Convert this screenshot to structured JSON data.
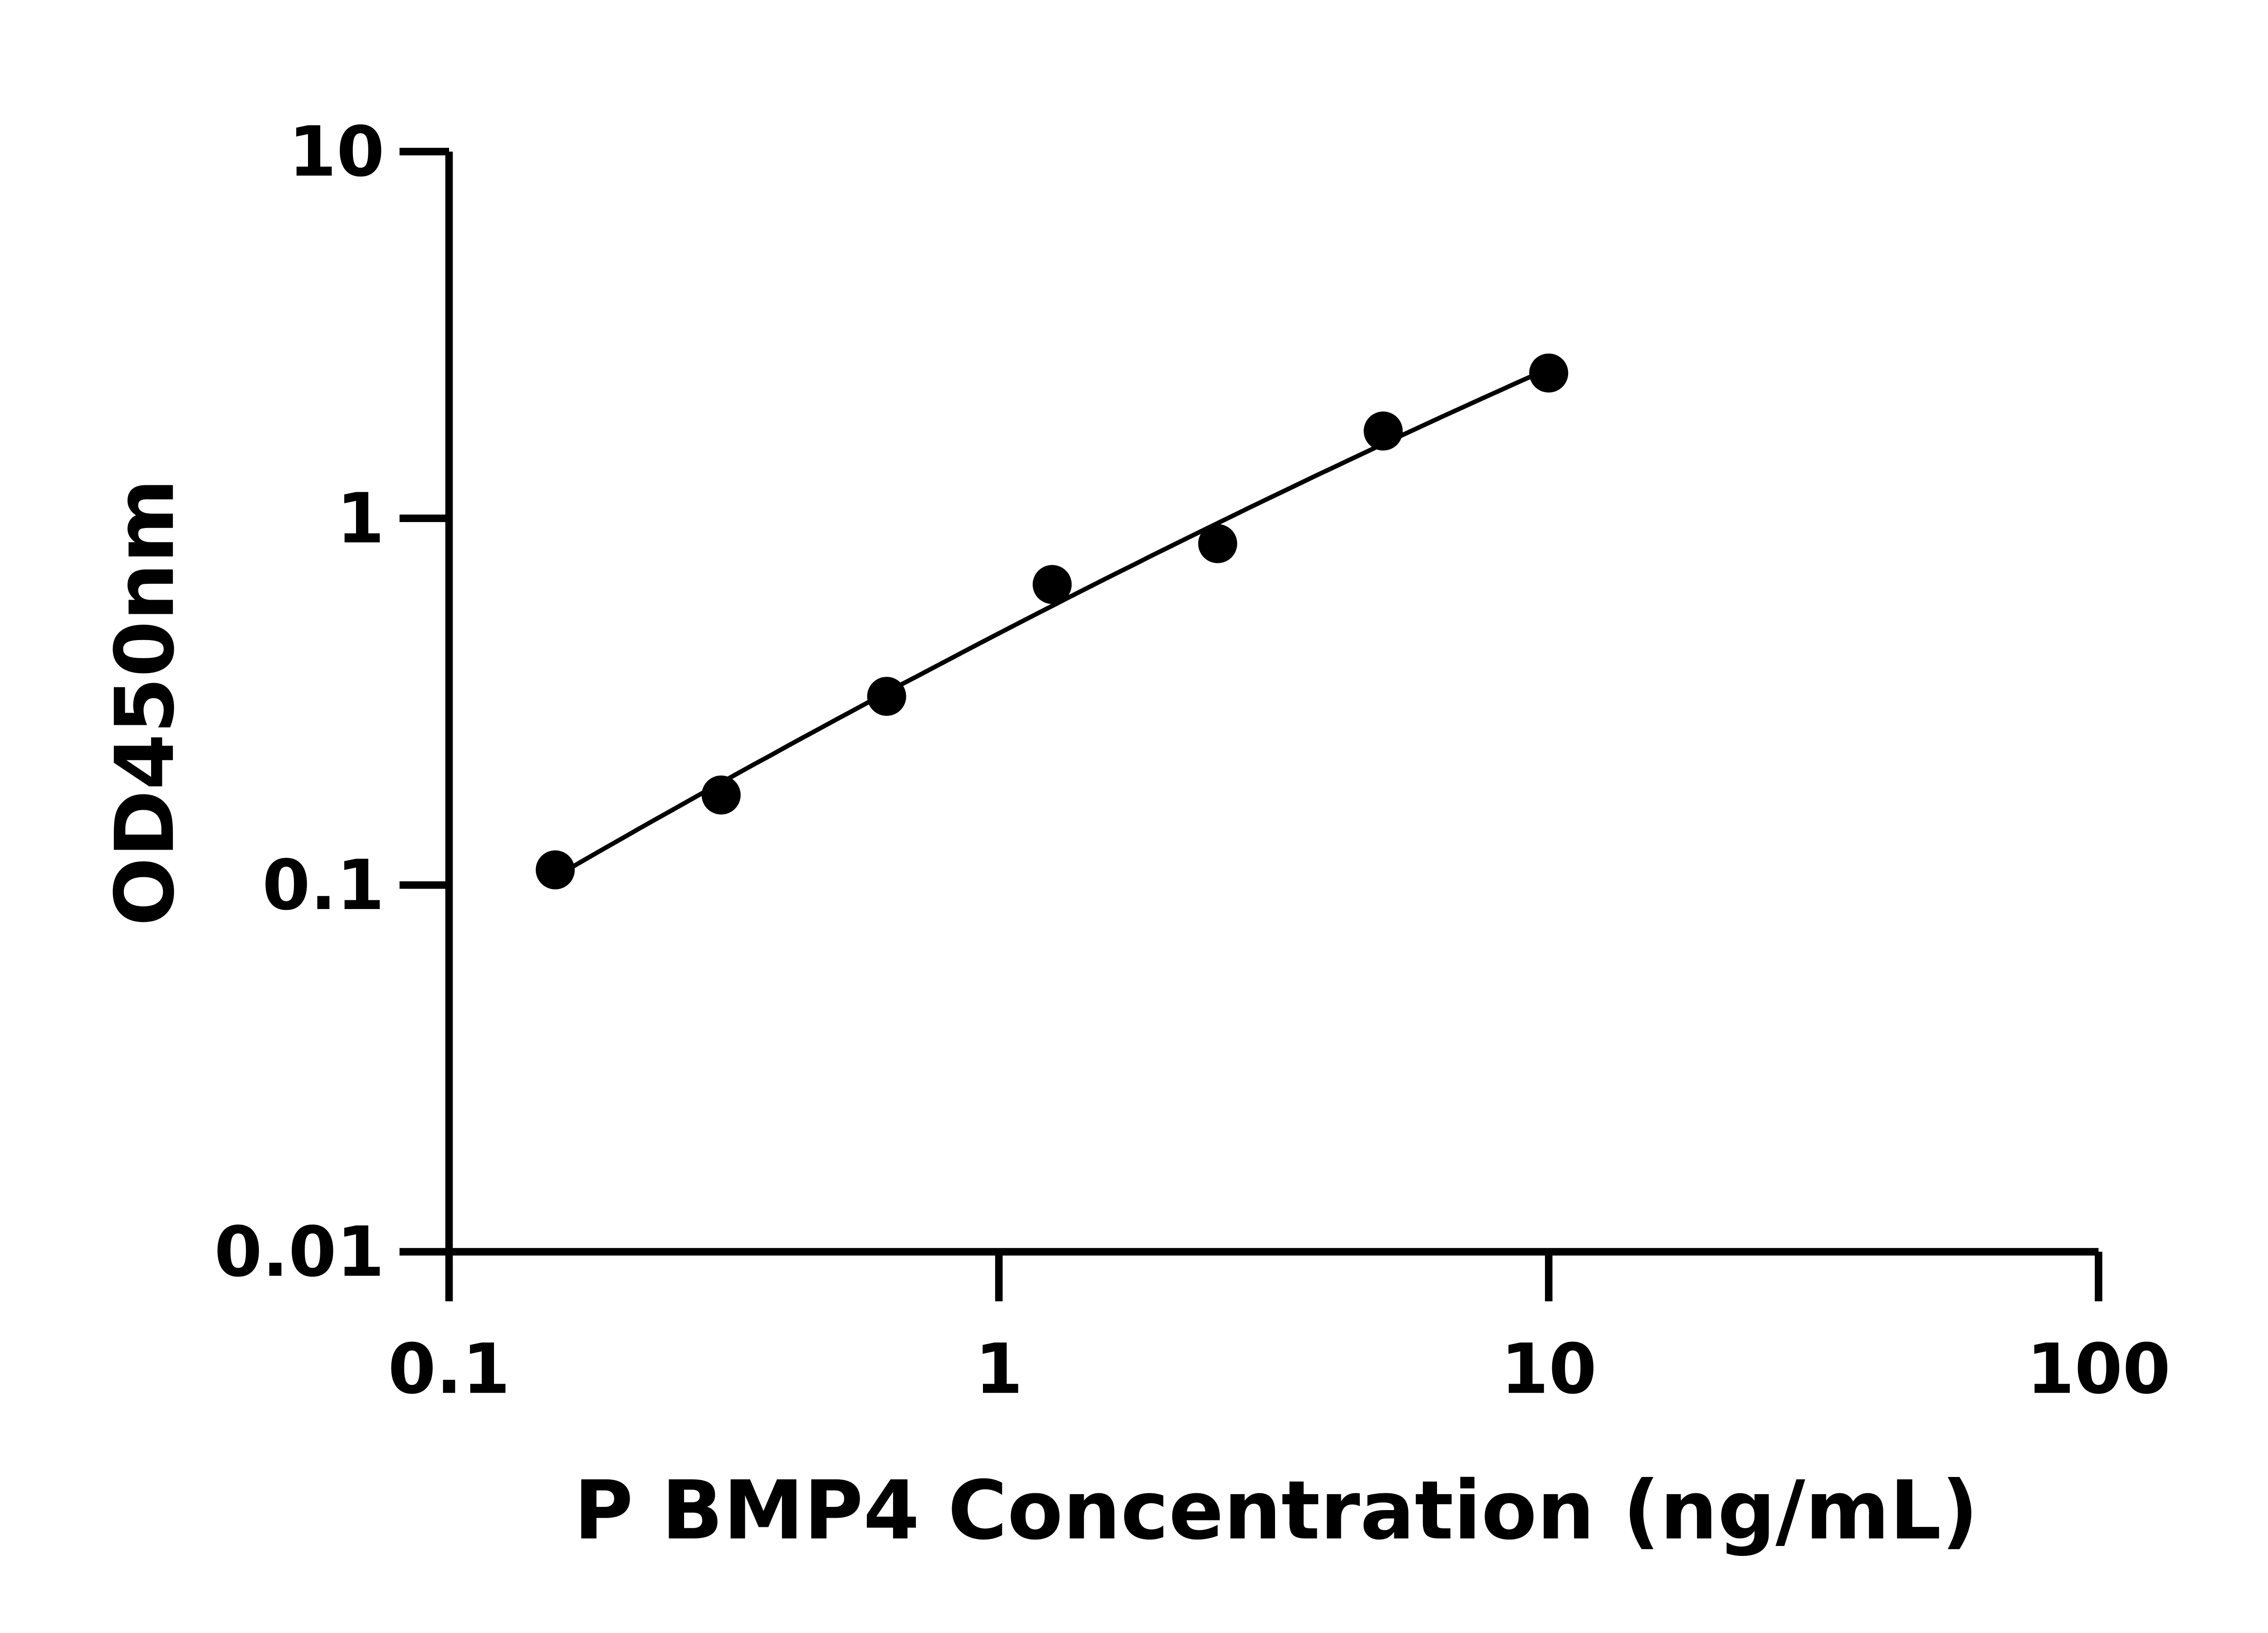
{
  "chart_data": {
    "type": "scatter",
    "title": "",
    "xlabel": "P BMP4 Concentration (ng/mL)",
    "ylabel": "OD450nm",
    "xscale": "log",
    "yscale": "log",
    "xlim": [
      0.1,
      100
    ],
    "ylim": [
      0.01,
      10
    ],
    "xticks": [
      "0.1",
      "1",
      "10",
      "100"
    ],
    "yticks": [
      "0.01",
      "0.1",
      "1",
      "10"
    ],
    "grid": false,
    "fit_curve": true,
    "color": "#000000",
    "x": [
      0.156,
      0.3125,
      0.625,
      1.25,
      2.5,
      5,
      10
    ],
    "y": [
      0.11,
      0.176,
      0.327,
      0.66,
      0.853,
      1.73,
      2.49
    ]
  }
}
